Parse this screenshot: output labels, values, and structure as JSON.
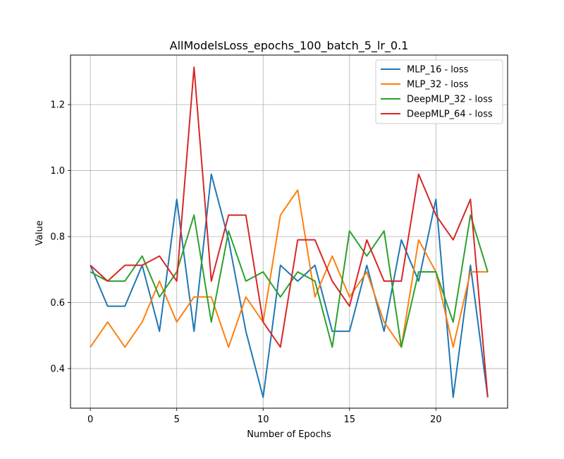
{
  "chart_data": {
    "type": "line",
    "title": "AllModelsLoss_epochs_100_batch_5_lr_0.1",
    "xlabel": "Number of Epochs",
    "ylabel": "Value",
    "xlim": [
      -1.15,
      24.15
    ],
    "ylim": [
      0.28,
      1.35
    ],
    "xticks": [
      0,
      5,
      10,
      15,
      20
    ],
    "yticks": [
      0.4,
      0.6,
      0.8,
      1.0,
      1.2
    ],
    "grid": true,
    "legend_position": "top-right",
    "x": [
      0,
      1,
      2,
      3,
      4,
      5,
      6,
      7,
      8,
      9,
      10,
      11,
      12,
      13,
      14,
      15,
      16,
      17,
      18,
      19,
      20,
      21,
      22,
      23
    ],
    "series": [
      {
        "name": "MLP_16 - loss",
        "color": "#1f77b4",
        "values": [
          0.713,
          0.589,
          0.589,
          0.713,
          0.513,
          0.913,
          0.513,
          0.989,
          0.79,
          0.513,
          0.313,
          0.713,
          0.665,
          0.713,
          0.513,
          0.513,
          0.713,
          0.513,
          0.79,
          0.665,
          0.913,
          0.313,
          0.713,
          0.313
        ]
      },
      {
        "name": "MLP_32 - loss",
        "color": "#ff7f0e",
        "values": [
          0.465,
          0.541,
          0.465,
          0.541,
          0.665,
          0.541,
          0.617,
          0.617,
          0.465,
          0.617,
          0.541,
          0.865,
          0.941,
          0.617,
          0.741,
          0.617,
          0.693,
          0.541,
          0.465,
          0.79,
          0.693,
          0.465,
          0.693,
          0.693
        ]
      },
      {
        "name": "DeepMLP_32 - loss",
        "color": "#2ca02c",
        "values": [
          0.693,
          0.665,
          0.665,
          0.741,
          0.617,
          0.693,
          0.865,
          0.541,
          0.817,
          0.665,
          0.693,
          0.617,
          0.693,
          0.665,
          0.465,
          0.817,
          0.741,
          0.817,
          0.465,
          0.693,
          0.693,
          0.541,
          0.865,
          0.693
        ]
      },
      {
        "name": "DeepMLP_64 - loss",
        "color": "#d62728",
        "values": [
          0.713,
          0.665,
          0.713,
          0.713,
          0.741,
          0.665,
          1.313,
          0.665,
          0.865,
          0.865,
          0.541,
          0.465,
          0.79,
          0.79,
          0.665,
          0.589,
          0.79,
          0.665,
          0.665,
          0.989,
          0.865,
          0.79,
          0.913,
          0.313
        ]
      }
    ]
  }
}
